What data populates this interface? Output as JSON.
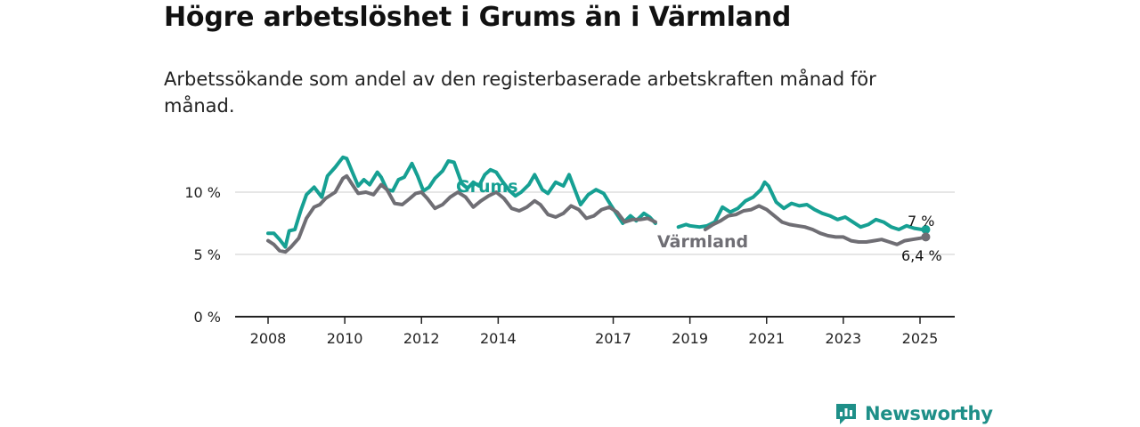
{
  "title": "Högre arbetslöshet i Grums än i Värmland",
  "subtitle": "Arbetssökande som andel av den registerbaserade arbetskraften månad för månad.",
  "brand": {
    "name": "Newsworthy",
    "icon": "newsworthy-logo-icon"
  },
  "colors": {
    "grums": "#16a093",
    "varmland": "#6f6e74",
    "grid": "#d6d6d6",
    "axis": "#222222",
    "brand": "#1e8f88"
  },
  "chart_data": {
    "type": "line",
    "ylim": [
      0,
      14
    ],
    "xlim": [
      2007.2,
      2025.7
    ],
    "yticks": [
      {
        "value": 0,
        "label": "0 %"
      },
      {
        "value": 5,
        "label": "5 %"
      },
      {
        "value": 10,
        "label": "10 %"
      }
    ],
    "xticks": [
      {
        "value": 2008,
        "label": "2008"
      },
      {
        "value": 2010,
        "label": "2010"
      },
      {
        "value": 2012,
        "label": "2012"
      },
      {
        "value": 2014,
        "label": "2014"
      },
      {
        "value": 2017,
        "label": "2017"
      },
      {
        "value": 2019,
        "label": "2019"
      },
      {
        "value": 2021,
        "label": "2021"
      },
      {
        "value": 2023,
        "label": "2023"
      },
      {
        "value": 2025,
        "label": "2025"
      }
    ],
    "grid": true,
    "series": [
      {
        "name": "Grums",
        "end_label": "7 %",
        "points": [
          [
            2008.0,
            6.7
          ],
          [
            2008.15,
            6.7
          ],
          [
            2008.3,
            6.2
          ],
          [
            2008.45,
            5.6
          ],
          [
            2008.55,
            6.9
          ],
          [
            2008.7,
            7.0
          ],
          [
            2008.85,
            8.5
          ],
          [
            2009.0,
            9.8
          ],
          [
            2009.2,
            10.4
          ],
          [
            2009.4,
            9.6
          ],
          [
            2009.55,
            11.3
          ],
          [
            2009.75,
            12.0
          ],
          [
            2009.95,
            12.8
          ],
          [
            2010.05,
            12.7
          ],
          [
            2010.2,
            11.6
          ],
          [
            2010.35,
            10.5
          ],
          [
            2010.5,
            11.0
          ],
          [
            2010.65,
            10.6
          ],
          [
            2010.85,
            11.6
          ],
          [
            2010.95,
            11.2
          ],
          [
            2011.1,
            10.2
          ],
          [
            2011.25,
            10.1
          ],
          [
            2011.4,
            11.0
          ],
          [
            2011.55,
            11.2
          ],
          [
            2011.75,
            12.3
          ],
          [
            2011.9,
            11.3
          ],
          [
            2012.05,
            10.1
          ],
          [
            2012.2,
            10.4
          ],
          [
            2012.35,
            11.1
          ],
          [
            2012.55,
            11.7
          ],
          [
            2012.7,
            12.5
          ],
          [
            2012.85,
            12.4
          ],
          [
            2013.05,
            10.7
          ],
          [
            2013.2,
            10.3
          ],
          [
            2013.35,
            10.8
          ],
          [
            2013.5,
            10.5
          ],
          [
            2013.65,
            11.4
          ],
          [
            2013.8,
            11.8
          ],
          [
            2013.95,
            11.6
          ],
          [
            2014.1,
            10.9
          ],
          [
            2014.3,
            10.1
          ],
          [
            2014.45,
            9.7
          ],
          [
            2014.6,
            10.0
          ],
          [
            2014.8,
            10.6
          ],
          [
            2014.95,
            11.4
          ],
          [
            2015.15,
            10.2
          ],
          [
            2015.3,
            9.9
          ],
          [
            2015.5,
            10.8
          ],
          [
            2015.7,
            10.5
          ],
          [
            2015.85,
            11.4
          ],
          [
            2015.95,
            10.6
          ],
          [
            2016.15,
            9.0
          ],
          [
            2016.35,
            9.8
          ],
          [
            2016.55,
            10.2
          ],
          [
            2016.75,
            9.9
          ],
          [
            2016.95,
            8.9
          ],
          [
            2017.1,
            8.2
          ],
          [
            2017.25,
            7.5
          ],
          [
            2017.45,
            8.1
          ],
          [
            2017.6,
            7.7
          ],
          [
            2017.8,
            8.3
          ],
          [
            2017.95,
            8.0
          ],
          [
            2018.1,
            7.5
          ],
          [
            2018.7,
            7.2
          ],
          [
            2018.9,
            7.4
          ],
          [
            2019.0,
            7.3
          ],
          [
            2019.25,
            7.2
          ],
          [
            2019.45,
            7.3
          ],
          [
            2019.65,
            7.6
          ],
          [
            2019.85,
            8.8
          ],
          [
            2020.05,
            8.4
          ],
          [
            2020.25,
            8.7
          ],
          [
            2020.45,
            9.3
          ],
          [
            2020.65,
            9.6
          ],
          [
            2020.85,
            10.2
          ],
          [
            2020.95,
            10.8
          ],
          [
            2021.05,
            10.5
          ],
          [
            2021.25,
            9.2
          ],
          [
            2021.45,
            8.7
          ],
          [
            2021.65,
            9.1
          ],
          [
            2021.85,
            8.9
          ],
          [
            2022.05,
            9.0
          ],
          [
            2022.25,
            8.6
          ],
          [
            2022.45,
            8.3
          ],
          [
            2022.65,
            8.1
          ],
          [
            2022.85,
            7.8
          ],
          [
            2023.05,
            8.0
          ],
          [
            2023.25,
            7.6
          ],
          [
            2023.45,
            7.2
          ],
          [
            2023.65,
            7.4
          ],
          [
            2023.85,
            7.8
          ],
          [
            2024.05,
            7.6
          ],
          [
            2024.25,
            7.2
          ],
          [
            2024.45,
            7.0
          ],
          [
            2024.65,
            7.3
          ],
          [
            2024.85,
            7.1
          ],
          [
            2025.05,
            7.0
          ],
          [
            2025.15,
            7.0
          ]
        ]
      },
      {
        "name": "Värmland",
        "end_label": "6,4 %",
        "points": [
          [
            2008.0,
            6.1
          ],
          [
            2008.15,
            5.8
          ],
          [
            2008.3,
            5.3
          ],
          [
            2008.45,
            5.2
          ],
          [
            2008.6,
            5.6
          ],
          [
            2008.8,
            6.3
          ],
          [
            2009.0,
            7.9
          ],
          [
            2009.2,
            8.8
          ],
          [
            2009.35,
            9.0
          ],
          [
            2009.5,
            9.5
          ],
          [
            2009.75,
            10.0
          ],
          [
            2009.95,
            11.1
          ],
          [
            2010.05,
            11.3
          ],
          [
            2010.2,
            10.6
          ],
          [
            2010.35,
            9.9
          ],
          [
            2010.55,
            10.0
          ],
          [
            2010.75,
            9.8
          ],
          [
            2010.95,
            10.6
          ],
          [
            2011.1,
            10.2
          ],
          [
            2011.3,
            9.1
          ],
          [
            2011.5,
            9.0
          ],
          [
            2011.7,
            9.5
          ],
          [
            2011.85,
            9.9
          ],
          [
            2012.0,
            10.0
          ],
          [
            2012.15,
            9.5
          ],
          [
            2012.35,
            8.7
          ],
          [
            2012.55,
            9.0
          ],
          [
            2012.75,
            9.6
          ],
          [
            2012.95,
            10.0
          ],
          [
            2013.15,
            9.6
          ],
          [
            2013.35,
            8.8
          ],
          [
            2013.55,
            9.3
          ],
          [
            2013.75,
            9.7
          ],
          [
            2013.95,
            10.0
          ],
          [
            2014.15,
            9.5
          ],
          [
            2014.35,
            8.7
          ],
          [
            2014.55,
            8.5
          ],
          [
            2014.75,
            8.8
          ],
          [
            2014.95,
            9.3
          ],
          [
            2015.1,
            9.0
          ],
          [
            2015.3,
            8.2
          ],
          [
            2015.5,
            8.0
          ],
          [
            2015.7,
            8.3
          ],
          [
            2015.9,
            8.9
          ],
          [
            2016.1,
            8.6
          ],
          [
            2016.3,
            7.9
          ],
          [
            2016.5,
            8.1
          ],
          [
            2016.7,
            8.6
          ],
          [
            2016.9,
            8.8
          ],
          [
            2017.1,
            8.4
          ],
          [
            2017.3,
            7.6
          ],
          [
            2017.5,
            7.8
          ],
          [
            2017.7,
            7.8
          ],
          [
            2017.9,
            7.9
          ],
          [
            2018.1,
            7.6
          ],
          [
            2019.4,
            7.0
          ],
          [
            2019.6,
            7.4
          ],
          [
            2019.8,
            7.7
          ],
          [
            2020.0,
            8.1
          ],
          [
            2020.2,
            8.2
          ],
          [
            2020.4,
            8.5
          ],
          [
            2020.6,
            8.6
          ],
          [
            2020.8,
            8.9
          ],
          [
            2021.0,
            8.6
          ],
          [
            2021.2,
            8.1
          ],
          [
            2021.4,
            7.6
          ],
          [
            2021.6,
            7.4
          ],
          [
            2021.8,
            7.3
          ],
          [
            2022.0,
            7.2
          ],
          [
            2022.2,
            7.0
          ],
          [
            2022.4,
            6.7
          ],
          [
            2022.6,
            6.5
          ],
          [
            2022.8,
            6.4
          ],
          [
            2023.0,
            6.4
          ],
          [
            2023.2,
            6.1
          ],
          [
            2023.4,
            6.0
          ],
          [
            2023.6,
            6.0
          ],
          [
            2023.8,
            6.1
          ],
          [
            2024.0,
            6.2
          ],
          [
            2024.2,
            6.0
          ],
          [
            2024.4,
            5.8
          ],
          [
            2024.6,
            6.1
          ],
          [
            2024.8,
            6.2
          ],
          [
            2025.0,
            6.3
          ],
          [
            2025.15,
            6.4
          ]
        ]
      }
    ]
  }
}
